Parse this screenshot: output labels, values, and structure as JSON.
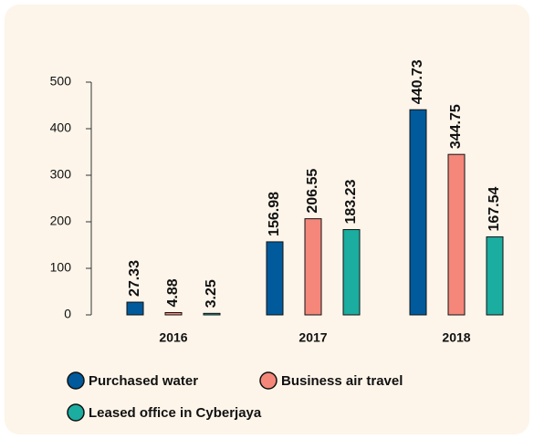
{
  "chart_data": {
    "type": "bar",
    "categories": [
      "2016",
      "2017",
      "2018"
    ],
    "series": [
      {
        "name": "Purchased water",
        "color": "#005a9c",
        "values": [
          27.33,
          156.98,
          440.73
        ]
      },
      {
        "name": "Business air travel",
        "color": "#f4877a",
        "values": [
          4.88,
          206.55,
          344.75
        ]
      },
      {
        "name": "Leased office in Cyberjaya",
        "color": "#1aada0",
        "values": [
          3.25,
          183.23,
          167.54
        ]
      }
    ],
    "ylim": [
      0,
      500
    ],
    "yticks": [
      0,
      100,
      200,
      300,
      400,
      500
    ],
    "grid": false
  }
}
